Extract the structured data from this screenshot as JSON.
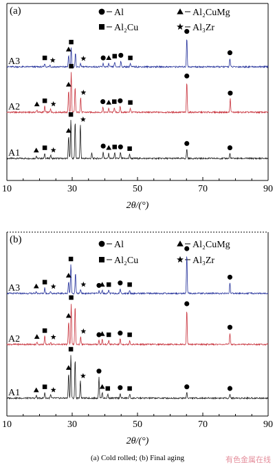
{
  "caption": "(a)  Cold  rolled; (b) Final aging",
  "watermark": "有色金属在线",
  "legend_symbols": [
    {
      "shape": "circle",
      "text": "Al"
    },
    {
      "shape": "square",
      "text": "Al₂Cu"
    },
    {
      "shape": "triangle",
      "text": "Al₂CuMg"
    },
    {
      "shape": "star",
      "text": "Al₃Zr"
    }
  ],
  "series_colors": {
    "A1": "#1a1a1a",
    "A2": "#c8323c",
    "A3": "#23309a"
  },
  "chart_data": [
    {
      "type": "line",
      "panel_label": "(a)",
      "xlabel": "2θ/(°)",
      "xlim": [
        10,
        90
      ],
      "xticks": [
        10,
        30,
        50,
        70,
        90
      ],
      "y_ticks_shown": false,
      "frame": "solid",
      "series": [
        {
          "name": "A1",
          "offset": 0,
          "peaks": [
            [
              19,
              0.06
            ],
            [
              21.6,
              0.12
            ],
            [
              23.4,
              0.08
            ],
            [
              28.9,
              0.52
            ],
            [
              29.6,
              0.9
            ],
            [
              30.9,
              0.88
            ],
            [
              32.5,
              0.8
            ],
            [
              36,
              0.12
            ],
            [
              39.5,
              0.16
            ],
            [
              41.2,
              0.12
            ],
            [
              43,
              0.14
            ],
            [
              44.8,
              0.14
            ],
            [
              47.6,
              0.1
            ],
            [
              65.1,
              0.22
            ],
            [
              78.3,
              0.12
            ]
          ]
        },
        {
          "name": "A2",
          "offset": 1,
          "peaks": [
            [
              19.2,
              0.06
            ],
            [
              21.6,
              0.14
            ],
            [
              23.4,
              0.08
            ],
            [
              28.9,
              0.52
            ],
            [
              29.7,
              0.95
            ],
            [
              30.9,
              0.6
            ],
            [
              32.6,
              0.35
            ],
            [
              39.4,
              0.12
            ],
            [
              41.2,
              0.1
            ],
            [
              42.9,
              0.12
            ],
            [
              44.7,
              0.14
            ],
            [
              47.8,
              0.1
            ],
            [
              65.1,
              0.72
            ],
            [
              78.4,
              0.32
            ]
          ]
        },
        {
          "name": "A3",
          "offset": 2,
          "peaks": [
            [
              21.6,
              0.08
            ],
            [
              23.2,
              0.04
            ],
            [
              28.9,
              0.28
            ],
            [
              29.7,
              0.45
            ],
            [
              31,
              0.32
            ],
            [
              32.6,
              0.08
            ],
            [
              39.5,
              0.08
            ],
            [
              41.2,
              0.08
            ],
            [
              43,
              0.12
            ],
            [
              44.9,
              0.14
            ],
            [
              47.8,
              0.08
            ],
            [
              65.1,
              0.7
            ],
            [
              78.3,
              0.2
            ]
          ]
        }
      ],
      "markers": [
        {
          "series": "A1",
          "items": [
            [
              "triangle",
              19
            ],
            [
              "square",
              21.6
            ],
            [
              "star",
              23.4
            ],
            [
              "triangle",
              28.9
            ],
            [
              "square",
              29.6
            ],
            [
              "star",
              32.5
            ],
            [
              "circle",
              39.5
            ],
            [
              "triangle",
              41.2
            ],
            [
              "square",
              43
            ],
            [
              "circle",
              44.8
            ],
            [
              "square",
              47.6
            ],
            [
              "circle",
              65.1
            ],
            [
              "circle",
              78.3
            ]
          ]
        },
        {
          "series": "A2",
          "items": [
            [
              "triangle",
              19.2
            ],
            [
              "square",
              21.6
            ],
            [
              "star",
              23.4
            ],
            [
              "triangle",
              28.9
            ],
            [
              "square",
              29.7
            ],
            [
              "star",
              32.6
            ],
            [
              "circle",
              39.4
            ],
            [
              "triangle",
              41.2
            ],
            [
              "square",
              42.9
            ],
            [
              "circle",
              44.7
            ],
            [
              "square",
              47.8
            ],
            [
              "circle",
              65.1
            ],
            [
              "circle",
              78.4
            ]
          ]
        },
        {
          "series": "A3",
          "items": [
            [
              "square",
              21.6
            ],
            [
              "star",
              23.2
            ],
            [
              "triangle",
              28.9
            ],
            [
              "square",
              29.7
            ],
            [
              "star",
              32.6
            ],
            [
              "circle",
              39.5
            ],
            [
              "triangle",
              41.2
            ],
            [
              "square",
              43
            ],
            [
              "circle",
              44.9
            ],
            [
              "square",
              47.8
            ],
            [
              "circle",
              65.1
            ],
            [
              "circle",
              78.3
            ]
          ]
        }
      ]
    },
    {
      "type": "line",
      "panel_label": "(b)",
      "xlabel": "2θ/(°)",
      "xlim": [
        10,
        90
      ],
      "xticks": [
        10,
        30,
        50,
        70,
        90
      ],
      "y_ticks_shown": false,
      "frame": "dashed-top",
      "series": [
        {
          "name": "A1",
          "offset": 0,
          "peaks": [
            [
              19,
              0.06
            ],
            [
              21.6,
              0.14
            ],
            [
              23.4,
              0.08
            ],
            [
              28.9,
              0.6
            ],
            [
              29.6,
              1.05
            ],
            [
              30.9,
              0.95
            ],
            [
              32.5,
              0.42
            ],
            [
              38.2,
              0.52
            ],
            [
              39.2,
              0.14
            ],
            [
              40.9,
              0.1
            ],
            [
              44.7,
              0.12
            ],
            [
              47.6,
              0.1
            ],
            [
              65.1,
              0.14
            ],
            [
              78.3,
              0.1
            ]
          ]
        },
        {
          "name": "A2",
          "offset": 1,
          "peaks": [
            [
              19.2,
              0.05
            ],
            [
              21.6,
              0.2
            ],
            [
              23.4,
              0.06
            ],
            [
              28.9,
              0.56
            ],
            [
              29.7,
              1.0
            ],
            [
              30.9,
              0.95
            ],
            [
              32.6,
              0.2
            ],
            [
              38.2,
              0.1
            ],
            [
              39.2,
              0.12
            ],
            [
              41.2,
              0.1
            ],
            [
              44.7,
              0.14
            ],
            [
              47.6,
              0.1
            ],
            [
              65.1,
              0.85
            ],
            [
              78.3,
              0.28
            ]
          ]
        },
        {
          "name": "A3",
          "offset": 2,
          "peaks": [
            [
              19,
              0.04
            ],
            [
              21.6,
              0.14
            ],
            [
              23.4,
              0.05
            ],
            [
              28.9,
              0.3
            ],
            [
              29.6,
              0.7
            ],
            [
              31,
              0.5
            ],
            [
              32.6,
              0.1
            ],
            [
              38.2,
              0.06
            ],
            [
              39.2,
              0.08
            ],
            [
              41.2,
              0.08
            ],
            [
              44.7,
              0.12
            ],
            [
              47.6,
              0.08
            ],
            [
              65.1,
              0.95
            ],
            [
              78.3,
              0.26
            ]
          ]
        }
      ],
      "markers": [
        {
          "series": "A1",
          "items": [
            [
              "triangle",
              19
            ],
            [
              "square",
              21.6
            ],
            [
              "star",
              23.4
            ],
            [
              "triangle",
              28.9
            ],
            [
              "square",
              29.6
            ],
            [
              "star",
              32.5
            ],
            [
              "circle",
              38.2
            ],
            [
              "triangle",
              39.2
            ],
            [
              "square",
              40.9
            ],
            [
              "circle",
              44.7
            ],
            [
              "square",
              47.6
            ],
            [
              "circle",
              65.1
            ],
            [
              "circle",
              78.3
            ]
          ]
        },
        {
          "series": "A2",
          "items": [
            [
              "triangle",
              19.2
            ],
            [
              "square",
              21.6
            ],
            [
              "star",
              23.4
            ],
            [
              "triangle",
              28.9
            ],
            [
              "square",
              29.7
            ],
            [
              "star",
              32.6
            ],
            [
              "circle",
              38.2
            ],
            [
              "triangle",
              39.2
            ],
            [
              "square",
              41.2
            ],
            [
              "circle",
              44.7
            ],
            [
              "square",
              47.6
            ],
            [
              "circle",
              65.1
            ],
            [
              "circle",
              78.3
            ]
          ]
        },
        {
          "series": "A3",
          "items": [
            [
              "triangle",
              19
            ],
            [
              "square",
              21.6
            ],
            [
              "star",
              23.4
            ],
            [
              "triangle",
              28.9
            ],
            [
              "square",
              29.6
            ],
            [
              "star",
              32.6
            ],
            [
              "circle",
              38.2
            ],
            [
              "triangle",
              39.2
            ],
            [
              "square",
              41.2
            ],
            [
              "circle",
              44.7
            ],
            [
              "square",
              47.6
            ],
            [
              "circle",
              65.1
            ],
            [
              "circle",
              78.3
            ]
          ]
        }
      ]
    }
  ]
}
